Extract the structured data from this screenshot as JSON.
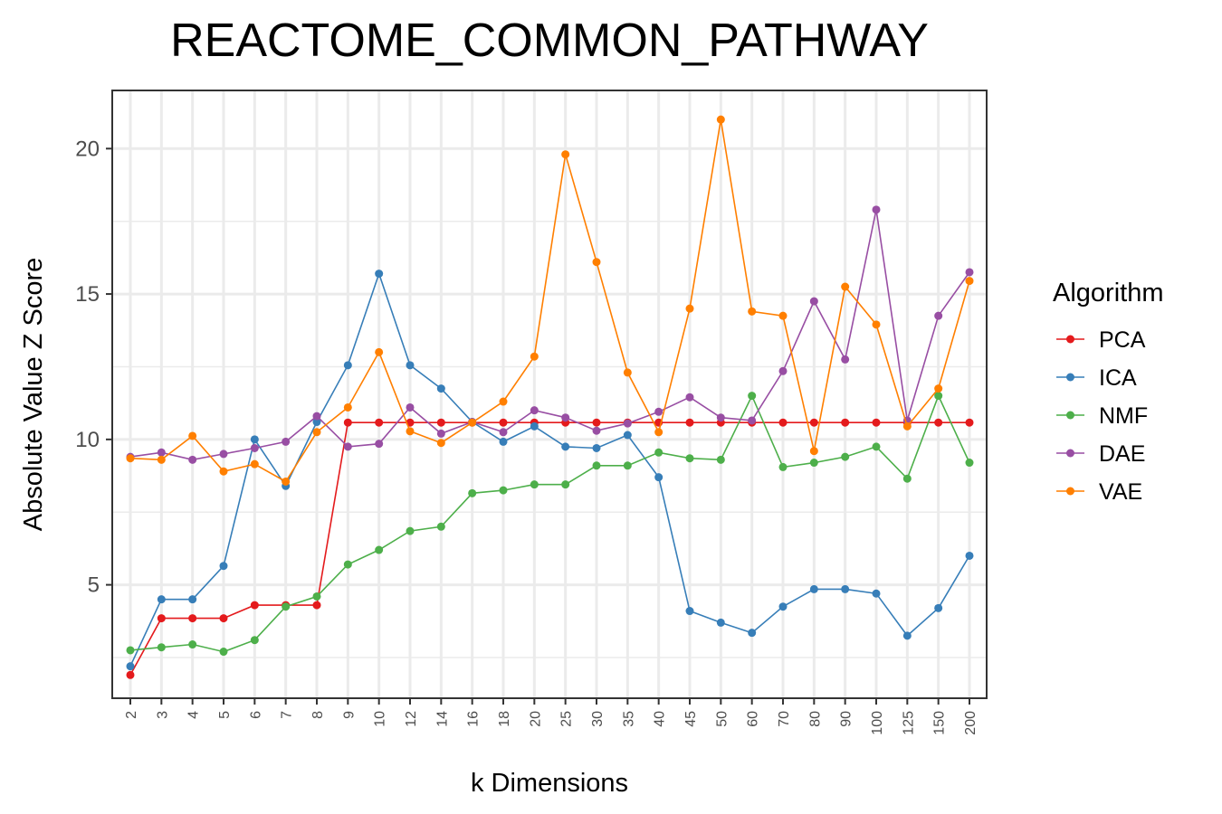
{
  "chart_data": {
    "type": "line",
    "title": "REACTOME_COMMON_PATHWAY",
    "xlabel": "k Dimensions",
    "ylabel": "Absolute Value Z Score",
    "categories": [
      "2",
      "3",
      "4",
      "5",
      "6",
      "7",
      "8",
      "9",
      "10",
      "12",
      "14",
      "16",
      "18",
      "20",
      "25",
      "30",
      "35",
      "40",
      "45",
      "50",
      "60",
      "70",
      "80",
      "90",
      "100",
      "125",
      "150",
      "200"
    ],
    "yticks": [
      "5",
      "10",
      "15",
      "20"
    ],
    "ylim": [
      1.1,
      22.0
    ],
    "grid": true,
    "legend": {
      "title": "Algorithm",
      "position": "right"
    },
    "series": [
      {
        "name": "PCA",
        "color": "#e41a1c",
        "values": [
          1.9,
          3.85,
          3.85,
          3.85,
          4.3,
          4.3,
          4.3,
          10.58,
          10.58,
          10.58,
          10.58,
          10.58,
          10.58,
          10.58,
          10.58,
          10.58,
          10.58,
          10.58,
          10.58,
          10.58,
          10.58,
          10.58,
          10.58,
          10.58,
          10.58,
          10.58,
          10.58,
          10.58
        ]
      },
      {
        "name": "ICA",
        "color": "#377eb8",
        "values": [
          2.2,
          4.5,
          4.5,
          5.65,
          10.0,
          8.4,
          10.6,
          12.55,
          15.7,
          12.55,
          11.75,
          10.6,
          9.92,
          10.45,
          9.75,
          9.7,
          10.15,
          8.7,
          4.1,
          3.7,
          3.35,
          4.25,
          4.85,
          4.85,
          4.7,
          3.25,
          4.2,
          6.0
        ]
      },
      {
        "name": "NMF",
        "color": "#4daf4a",
        "values": [
          2.75,
          2.85,
          2.95,
          2.7,
          3.1,
          4.25,
          4.6,
          5.7,
          6.2,
          6.85,
          7.0,
          8.15,
          8.25,
          8.45,
          8.45,
          9.1,
          9.1,
          9.55,
          9.35,
          9.3,
          11.5,
          9.05,
          9.2,
          9.4,
          9.75,
          8.65,
          11.5,
          9.2
        ]
      },
      {
        "name": "DAE",
        "color": "#984ea3",
        "values": [
          9.4,
          9.55,
          9.3,
          9.5,
          9.7,
          9.92,
          10.8,
          9.75,
          9.85,
          11.1,
          10.2,
          10.6,
          10.25,
          11.0,
          10.75,
          10.3,
          10.55,
          10.95,
          11.45,
          10.75,
          10.65,
          12.35,
          14.75,
          12.75,
          17.9,
          10.65,
          14.25,
          15.75
        ]
      },
      {
        "name": "VAE",
        "color": "#ff7f00",
        "values": [
          9.35,
          9.3,
          10.12,
          8.9,
          9.15,
          8.55,
          10.25,
          11.1,
          13.0,
          10.28,
          9.88,
          10.58,
          11.3,
          12.85,
          19.8,
          16.1,
          12.3,
          10.25,
          14.5,
          21.0,
          14.4,
          14.25,
          9.6,
          15.25,
          13.95,
          10.45,
          11.75,
          15.45
        ]
      }
    ]
  }
}
